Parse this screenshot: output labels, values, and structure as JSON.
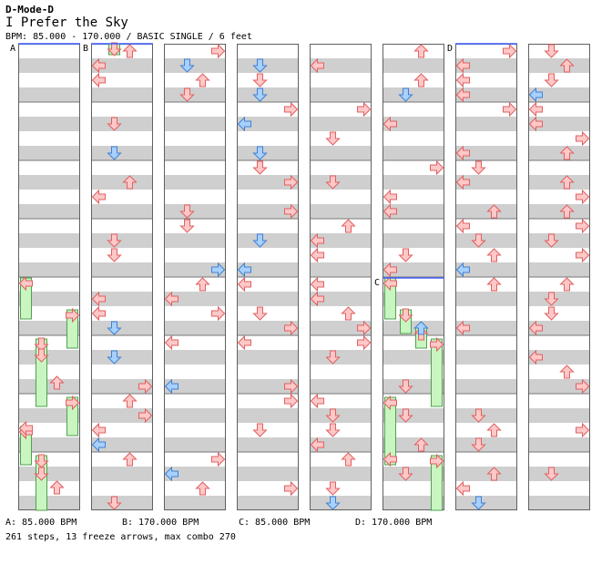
{
  "header": {
    "game": "D-Mode-D",
    "title": "I Prefer the Sky",
    "info": "BPM: 85.000 - 170.000 / BASIC SINGLE / 6 feet"
  },
  "bpm_markers": [
    {
      "label": "A",
      "value": "85.000 BPM",
      "legend": "A: 85.000 BPM"
    },
    {
      "label": "B",
      "value": "170.000 BPM",
      "legend": "B: 170.000 BPM"
    },
    {
      "label": "C",
      "value": "85.000 BPM",
      "legend": "C: 85.000 BPM"
    },
    {
      "label": "D",
      "value": "170.000 BPM",
      "legend": "D: 170.000 BPM"
    }
  ],
  "stats": "261 steps, 13 freeze arrows, max combo 270",
  "colors": {
    "stripe": "#cfcfcf",
    "border": "#606060",
    "step_red": "#ffc8c8",
    "step_red_stroke": "#e06060",
    "step_blue": "#a8d0ff",
    "step_blue_stroke": "#4080d0",
    "freeze_fill": "#c8f5c0",
    "freeze_stroke": "#50a050",
    "bpm_line": "#4060ff"
  }
}
